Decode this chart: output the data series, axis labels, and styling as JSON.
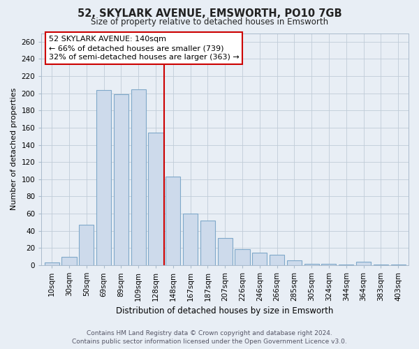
{
  "title": "52, SKYLARK AVENUE, EMSWORTH, PO10 7GB",
  "subtitle": "Size of property relative to detached houses in Emsworth",
  "xlabel": "Distribution of detached houses by size in Emsworth",
  "ylabel": "Number of detached properties",
  "bar_labels": [
    "10sqm",
    "30sqm",
    "50sqm",
    "69sqm",
    "89sqm",
    "109sqm",
    "128sqm",
    "148sqm",
    "167sqm",
    "187sqm",
    "207sqm",
    "226sqm",
    "246sqm",
    "266sqm",
    "285sqm",
    "305sqm",
    "324sqm",
    "344sqm",
    "364sqm",
    "383sqm",
    "403sqm"
  ],
  "bar_values": [
    3,
    10,
    47,
    204,
    199,
    205,
    154,
    103,
    60,
    52,
    32,
    19,
    15,
    12,
    6,
    2,
    2,
    1,
    4,
    1,
    1
  ],
  "bar_color": "#cddaeb",
  "bar_edge_color": "#7fa8c9",
  "vline_x_index": 7,
  "vline_color": "#cc0000",
  "annotation_line1": "52 SKYLARK AVENUE: 140sqm",
  "annotation_line2": "← 66% of detached houses are smaller (739)",
  "annotation_line3": "32% of semi-detached houses are larger (363) →",
  "ylim": [
    0,
    270
  ],
  "yticks": [
    0,
    20,
    40,
    60,
    80,
    100,
    120,
    140,
    160,
    180,
    200,
    220,
    240,
    260
  ],
  "footer_line1": "Contains HM Land Registry data © Crown copyright and database right 2024.",
  "footer_line2": "Contains public sector information licensed under the Open Government Licence v3.0.",
  "bg_color": "#e8eef5",
  "plot_bg_color": "#e8eef5",
  "grid_color": "#c0ccd8",
  "title_fontsize": 10.5,
  "subtitle_fontsize": 8.5,
  "xlabel_fontsize": 8.5,
  "ylabel_fontsize": 8,
  "tick_fontsize": 7.5,
  "footer_fontsize": 6.5,
  "annotation_fontsize": 8
}
